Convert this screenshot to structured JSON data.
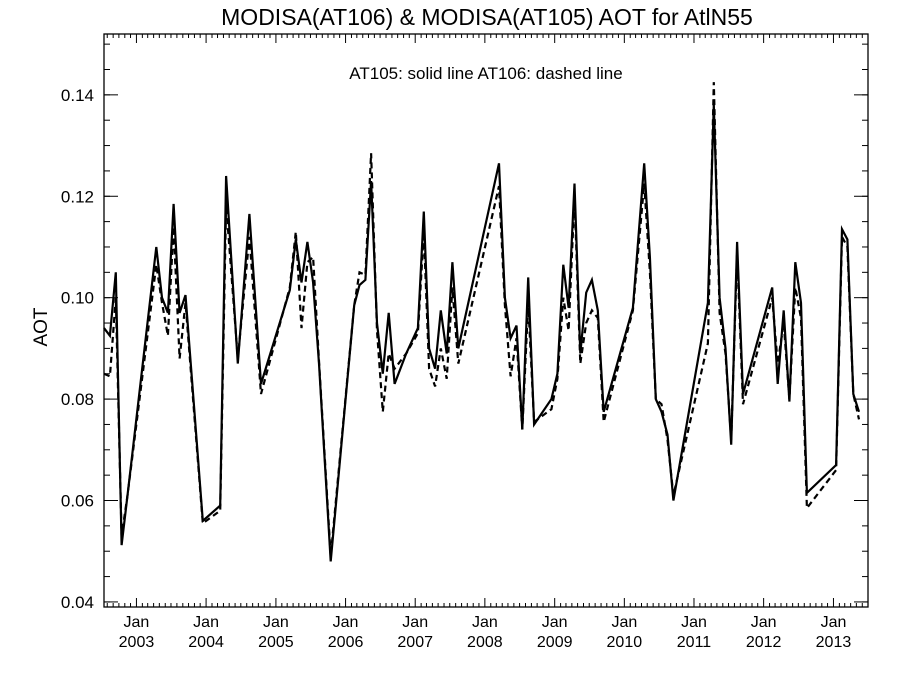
{
  "chart_data": {
    "type": "line",
    "title": "MODISA(AT106) & MODISA(AT105)  AOT for AtlN55",
    "annotation": "AT105: solid line   AT106: dashed line",
    "xlabel": "",
    "ylabel": "AOT",
    "ylim": [
      0.039,
      0.152
    ],
    "xlim": [
      "2002-07-15",
      "2013-07-01"
    ],
    "x_ticks": [
      {
        "date": "2003-01-01",
        "month": "Jan",
        "year": "2003"
      },
      {
        "date": "2004-01-01",
        "month": "Jan",
        "year": "2004"
      },
      {
        "date": "2005-01-01",
        "month": "Jan",
        "year": "2005"
      },
      {
        "date": "2006-01-01",
        "month": "Jan",
        "year": "2006"
      },
      {
        "date": "2007-01-01",
        "month": "Jan",
        "year": "2007"
      },
      {
        "date": "2008-01-01",
        "month": "Jan",
        "year": "2008"
      },
      {
        "date": "2009-01-01",
        "month": "Jan",
        "year": "2009"
      },
      {
        "date": "2010-01-01",
        "month": "Jan",
        "year": "2010"
      },
      {
        "date": "2011-01-01",
        "month": "Jan",
        "year": "2011"
      },
      {
        "date": "2012-01-01",
        "month": "Jan",
        "year": "2012"
      },
      {
        "date": "2013-01-01",
        "month": "Jan",
        "year": "2013"
      }
    ],
    "y_ticks": [
      "0.04",
      "0.06",
      "0.08",
      "0.10",
      "0.12",
      "0.14"
    ],
    "y_tick_values": [
      0.04,
      0.06,
      0.08,
      0.1,
      0.12,
      0.14
    ],
    "grid": false,
    "series": [
      {
        "name": "AT105",
        "style": "solid",
        "color": "#000000",
        "points": [
          [
            "2002-07-15",
            0.094
          ],
          [
            "2002-08-15",
            0.0925
          ],
          [
            "2002-09-15",
            0.105
          ],
          [
            "2002-10-15",
            0.0512
          ],
          [
            "2002-11-15",
            0.061
          ],
          [
            "2003-04-15",
            0.11
          ],
          [
            "2003-05-15",
            0.1
          ],
          [
            "2003-06-15",
            0.097
          ],
          [
            "2003-07-15",
            0.1185
          ],
          [
            "2003-08-15",
            0.097
          ],
          [
            "2003-09-15",
            0.1005
          ],
          [
            "2003-12-15",
            0.056
          ],
          [
            "2004-03-15",
            0.059
          ],
          [
            "2004-04-15",
            0.124
          ],
          [
            "2004-06-15",
            0.087
          ],
          [
            "2004-08-15",
            0.1165
          ],
          [
            "2004-10-15",
            0.083
          ],
          [
            "2005-03-15",
            0.1015
          ],
          [
            "2005-04-15",
            0.1115
          ],
          [
            "2005-05-15",
            0.103
          ],
          [
            "2005-06-15",
            0.111
          ],
          [
            "2005-07-15",
            0.103
          ],
          [
            "2005-08-15",
            0.087
          ],
          [
            "2005-10-15",
            0.048
          ],
          [
            "2006-02-15",
            0.0985
          ],
          [
            "2006-03-15",
            0.1025
          ],
          [
            "2006-04-15",
            0.1035
          ],
          [
            "2006-05-15",
            0.123
          ],
          [
            "2006-06-15",
            0.095
          ],
          [
            "2006-07-15",
            0.085
          ],
          [
            "2006-08-15",
            0.097
          ],
          [
            "2006-09-15",
            0.083
          ],
          [
            "2006-11-15",
            0.089
          ],
          [
            "2007-01-15",
            0.094
          ],
          [
            "2007-02-15",
            0.117
          ],
          [
            "2007-03-15",
            0.09
          ],
          [
            "2007-04-15",
            0.086
          ],
          [
            "2007-05-15",
            0.0975
          ],
          [
            "2007-06-15",
            0.089
          ],
          [
            "2007-07-15",
            0.107
          ],
          [
            "2007-08-15",
            0.09
          ],
          [
            "2008-03-15",
            0.1265
          ],
          [
            "2008-04-15",
            0.1
          ],
          [
            "2008-05-15",
            0.092
          ],
          [
            "2008-06-15",
            0.0945
          ],
          [
            "2008-07-15",
            0.074
          ],
          [
            "2008-08-15",
            0.104
          ],
          [
            "2008-09-15",
            0.075
          ],
          [
            "2008-12-15",
            0.08
          ],
          [
            "2009-01-15",
            0.085
          ],
          [
            "2009-02-15",
            0.1065
          ],
          [
            "2009-03-15",
            0.098
          ],
          [
            "2009-04-15",
            0.1225
          ],
          [
            "2009-05-15",
            0.089
          ],
          [
            "2009-06-15",
            0.101
          ],
          [
            "2009-07-15",
            0.1035
          ],
          [
            "2009-08-15",
            0.0975
          ],
          [
            "2009-09-15",
            0.0775
          ],
          [
            "2010-02-15",
            0.098
          ],
          [
            "2010-04-15",
            0.1265
          ],
          [
            "2010-05-15",
            0.108
          ],
          [
            "2010-06-15",
            0.08
          ],
          [
            "2010-07-15",
            0.0775
          ],
          [
            "2010-08-15",
            0.073
          ],
          [
            "2010-09-15",
            0.06
          ],
          [
            "2011-03-15",
            0.099
          ],
          [
            "2011-04-15",
            0.138
          ],
          [
            "2011-05-15",
            0.1
          ],
          [
            "2011-06-15",
            0.09
          ],
          [
            "2011-07-15",
            0.071
          ],
          [
            "2011-08-15",
            0.111
          ],
          [
            "2011-09-15",
            0.081
          ],
          [
            "2012-02-15",
            0.102
          ],
          [
            "2012-03-15",
            0.083
          ],
          [
            "2012-04-15",
            0.0975
          ],
          [
            "2012-05-15",
            0.0795
          ],
          [
            "2012-06-15",
            0.107
          ],
          [
            "2012-07-15",
            0.099
          ],
          [
            "2012-08-15",
            0.0615
          ],
          [
            "2013-01-15",
            0.067
          ],
          [
            "2013-02-15",
            0.1135
          ],
          [
            "2013-03-15",
            0.1115
          ],
          [
            "2013-04-15",
            0.081
          ],
          [
            "2013-05-15",
            0.0775
          ]
        ]
      },
      {
        "name": "AT106",
        "style": "dashed",
        "color": "#000000",
        "points": [
          [
            "2002-07-15",
            0.085
          ],
          [
            "2002-08-15",
            0.0845
          ],
          [
            "2002-09-15",
            0.1
          ],
          [
            "2002-10-15",
            0.053
          ],
          [
            "2002-11-15",
            0.061
          ],
          [
            "2003-04-15",
            0.1065
          ],
          [
            "2003-05-15",
            0.099
          ],
          [
            "2003-06-15",
            0.0925
          ],
          [
            "2003-07-15",
            0.114
          ],
          [
            "2003-08-15",
            0.088
          ],
          [
            "2003-09-15",
            0.099
          ],
          [
            "2003-12-15",
            0.0555
          ],
          [
            "2004-03-15",
            0.058
          ],
          [
            "2004-04-15",
            0.1185
          ],
          [
            "2004-06-15",
            0.088
          ],
          [
            "2004-08-15",
            0.112
          ],
          [
            "2004-10-15",
            0.081
          ],
          [
            "2005-03-15",
            0.102
          ],
          [
            "2005-04-15",
            0.113
          ],
          [
            "2005-05-15",
            0.094
          ],
          [
            "2005-06-15",
            0.107
          ],
          [
            "2005-07-15",
            0.108
          ],
          [
            "2005-08-15",
            0.0875
          ],
          [
            "2005-10-15",
            0.049
          ],
          [
            "2006-02-15",
            0.0985
          ],
          [
            "2006-03-15",
            0.105
          ],
          [
            "2006-04-15",
            0.1045
          ],
          [
            "2006-05-15",
            0.1285
          ],
          [
            "2006-06-15",
            0.0935
          ],
          [
            "2006-07-15",
            0.0775
          ],
          [
            "2006-08-15",
            0.089
          ],
          [
            "2006-09-15",
            0.086
          ],
          [
            "2006-11-15",
            0.089
          ],
          [
            "2007-01-15",
            0.093
          ],
          [
            "2007-02-15",
            0.113
          ],
          [
            "2007-03-15",
            0.086
          ],
          [
            "2007-04-15",
            0.0825
          ],
          [
            "2007-05-15",
            0.09
          ],
          [
            "2007-06-15",
            0.084
          ],
          [
            "2007-07-15",
            0.102
          ],
          [
            "2007-08-15",
            0.087
          ],
          [
            "2008-03-15",
            0.122
          ],
          [
            "2008-04-15",
            0.0985
          ],
          [
            "2008-05-15",
            0.0845
          ],
          [
            "2008-06-15",
            0.092
          ],
          [
            "2008-07-15",
            0.074
          ],
          [
            "2008-08-15",
            0.099
          ],
          [
            "2008-09-15",
            0.0755
          ],
          [
            "2008-12-15",
            0.078
          ],
          [
            "2009-01-15",
            0.084
          ],
          [
            "2009-02-15",
            0.1
          ],
          [
            "2009-03-15",
            0.0935
          ],
          [
            "2009-04-15",
            0.12
          ],
          [
            "2009-05-15",
            0.087
          ],
          [
            "2009-06-15",
            0.095
          ],
          [
            "2009-07-15",
            0.0975
          ],
          [
            "2009-08-15",
            0.096
          ],
          [
            "2009-09-15",
            0.0755
          ],
          [
            "2010-02-15",
            0.0975
          ],
          [
            "2010-04-15",
            0.1225
          ],
          [
            "2010-05-15",
            0.105
          ],
          [
            "2010-06-15",
            0.08
          ],
          [
            "2010-07-15",
            0.079
          ],
          [
            "2010-08-15",
            0.072
          ],
          [
            "2010-09-15",
            0.061
          ],
          [
            "2011-03-15",
            0.091
          ],
          [
            "2011-04-15",
            0.1425
          ],
          [
            "2011-05-15",
            0.097
          ],
          [
            "2011-06-15",
            0.089
          ],
          [
            "2011-07-15",
            0.072
          ],
          [
            "2011-08-15",
            0.109
          ],
          [
            "2011-09-15",
            0.079
          ],
          [
            "2012-02-15",
            0.1
          ],
          [
            "2012-03-15",
            0.087
          ],
          [
            "2012-04-15",
            0.095
          ],
          [
            "2012-05-15",
            0.08
          ],
          [
            "2012-06-15",
            0.102
          ],
          [
            "2012-07-15",
            0.096
          ],
          [
            "2012-08-15",
            0.0585
          ],
          [
            "2013-01-15",
            0.066
          ],
          [
            "2013-02-15",
            0.112
          ],
          [
            "2013-03-15",
            0.11
          ],
          [
            "2013-04-15",
            0.081
          ],
          [
            "2013-05-15",
            0.076
          ]
        ]
      }
    ]
  }
}
